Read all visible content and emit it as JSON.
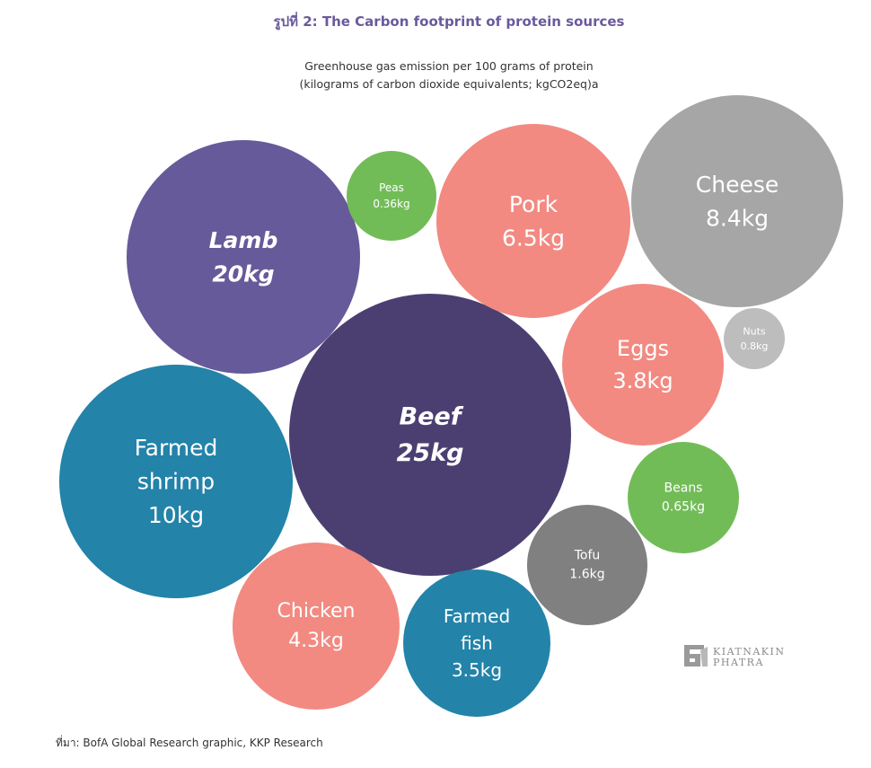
{
  "title": "รูปที่ 2: The Carbon footprint of protein sources",
  "subtitle_line1": "Greenhouse gas emission per 100 grams of protein",
  "subtitle_line2": "(kilograms of carbon dioxide equivalents; kgCO2eq)a",
  "source": "ที่มา: BofA Global Research graphic, KKP Research",
  "logo": {
    "line1": "KIATNAKIN",
    "line2": "PHATRA"
  },
  "chart_data": {
    "type": "bubble",
    "unit": "kg",
    "items": [
      {
        "name": "Beef",
        "label_lines": [
          "Beef"
        ],
        "value_label": "25kg",
        "value": 25,
        "color": "#4b3f72",
        "emphasis": true
      },
      {
        "name": "Lamb",
        "label_lines": [
          "Lamb"
        ],
        "value_label": "20kg",
        "value": 20,
        "color": "#665a9a",
        "emphasis": true
      },
      {
        "name": "Farmed shrimp",
        "label_lines": [
          "Farmed",
          "shrimp"
        ],
        "value_label": "10kg",
        "value": 10,
        "color": "#2383a9",
        "emphasis": false
      },
      {
        "name": "Cheese",
        "label_lines": [
          "Cheese"
        ],
        "value_label": "8.4kg",
        "value": 8.4,
        "color": "#a6a6a6",
        "emphasis": false
      },
      {
        "name": "Pork",
        "label_lines": [
          "Pork"
        ],
        "value_label": "6.5kg",
        "value": 6.5,
        "color": "#f28a82",
        "emphasis": false
      },
      {
        "name": "Chicken",
        "label_lines": [
          "Chicken"
        ],
        "value_label": "4.3kg",
        "value": 4.3,
        "color": "#f28a82",
        "emphasis": false
      },
      {
        "name": "Eggs",
        "label_lines": [
          "Eggs"
        ],
        "value_label": "3.8kg",
        "value": 3.8,
        "color": "#f28a82",
        "emphasis": false
      },
      {
        "name": "Farmed fish",
        "label_lines": [
          "Farmed",
          "fish"
        ],
        "value_label": "3.5kg",
        "value": 3.5,
        "color": "#2383a9",
        "emphasis": false
      },
      {
        "name": "Tofu",
        "label_lines": [
          "Tofu"
        ],
        "value_label": "1.6kg",
        "value": 1.6,
        "color": "#808080",
        "emphasis": false
      },
      {
        "name": "Nuts",
        "label_lines": [
          "Nuts"
        ],
        "value_label": "0.8kg",
        "value": 0.8,
        "color": "#bdbdbd",
        "emphasis": false
      },
      {
        "name": "Beans",
        "label_lines": [
          "Beans"
        ],
        "value_label": "0.65kg",
        "value": 0.65,
        "color": "#72bc58",
        "emphasis": false
      },
      {
        "name": "Peas",
        "label_lines": [
          "Peas"
        ],
        "value_label": "0.36kg",
        "value": 0.36,
        "color": "#72bc58",
        "emphasis": false
      }
    ]
  }
}
